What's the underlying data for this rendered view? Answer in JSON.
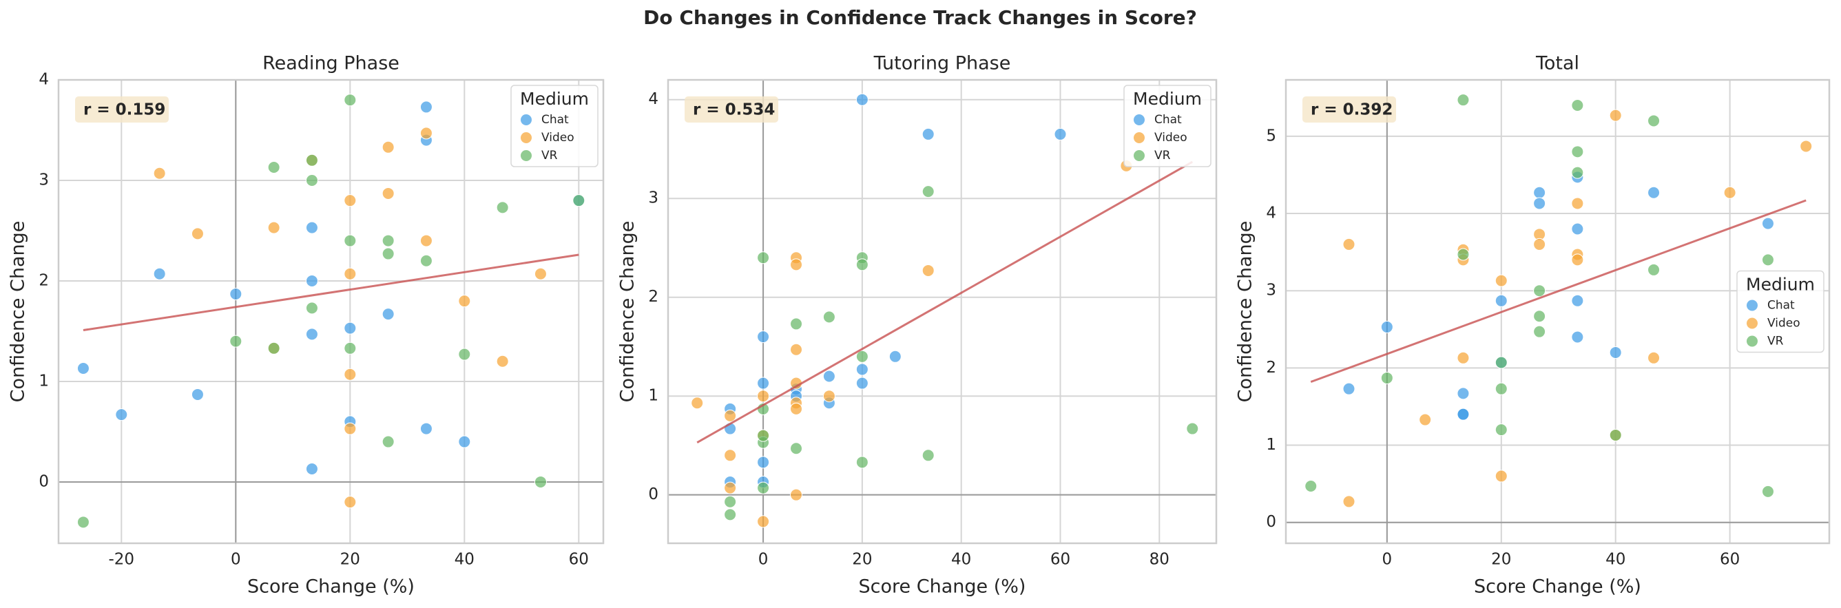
{
  "title": "Do Changes in Confidence Track Changes in Score?",
  "chart_data": [
    {
      "type": "scatter",
      "title": "Reading Phase",
      "xlabel": "Score Change (%)",
      "ylabel": "Confidence Change",
      "annotation": "r = 0.159",
      "legend_title": "Medium",
      "legend": "upper right",
      "grid": true,
      "xlim": [
        -31,
        64.3
      ],
      "ylim": [
        -0.61,
        4
      ],
      "xticks": [
        -20,
        0,
        20,
        40,
        60
      ],
      "yticks": [
        0,
        1,
        2,
        3,
        4
      ],
      "hline": 0,
      "vline": 0,
      "trend": {
        "color": "#c85050",
        "x": [
          -26.67,
          60
        ],
        "y": [
          1.51,
          2.26
        ]
      },
      "series": [
        {
          "name": "Chat",
          "color": "#3a9ae6",
          "x": [
            -26.67,
            -20,
            -13.33,
            -6.67,
            0,
            13.33,
            13.33,
            13.33,
            13.33,
            20,
            20,
            26.67,
            33.33,
            33.33,
            33.33,
            40,
            60
          ],
          "y": [
            1.13,
            0.67,
            2.07,
            0.87,
            1.87,
            2.53,
            2.0,
            1.47,
            0.13,
            1.53,
            0.6,
            1.67,
            3.73,
            3.4,
            0.53,
            0.4,
            2.8
          ]
        },
        {
          "name": "Video",
          "color": "#f7a330",
          "x": [
            -13.33,
            -6.67,
            6.67,
            6.67,
            13.33,
            20,
            20,
            20,
            20,
            20,
            26.67,
            26.67,
            33.33,
            33.33,
            40,
            46.67,
            53.33
          ],
          "y": [
            3.07,
            2.47,
            2.53,
            1.33,
            3.2,
            2.8,
            2.07,
            1.07,
            0.53,
            -0.2,
            3.33,
            2.87,
            3.47,
            2.4,
            1.8,
            1.2,
            2.07
          ]
        },
        {
          "name": "VR",
          "color": "#62b562",
          "x": [
            -26.67,
            0,
            6.67,
            6.67,
            13.33,
            13.33,
            13.33,
            20,
            20,
            20,
            26.67,
            26.67,
            26.67,
            33.33,
            40,
            46.67,
            53.33,
            60
          ],
          "y": [
            -0.4,
            1.4,
            3.13,
            1.33,
            3.2,
            3.0,
            1.73,
            3.8,
            2.4,
            1.33,
            2.4,
            2.27,
            0.4,
            2.2,
            1.27,
            2.73,
            0,
            2.8
          ]
        }
      ]
    },
    {
      "type": "scatter",
      "title": "Tutoring Phase",
      "xlabel": "Score Change (%)",
      "ylabel": "Confidence Change",
      "annotation": "r = 0.534",
      "legend_title": "Medium",
      "legend": "upper right",
      "grid": true,
      "xlim": [
        -19.2,
        91.5
      ],
      "ylim": [
        -0.49,
        4.2
      ],
      "xticks": [
        0,
        20,
        40,
        60,
        80
      ],
      "yticks": [
        0,
        1,
        2,
        3,
        4
      ],
      "hline": 0,
      "vline": 0,
      "trend": {
        "color": "#c85050",
        "x": [
          -13.33,
          86.67
        ],
        "y": [
          0.53,
          3.37
        ]
      },
      "series": [
        {
          "name": "Chat",
          "color": "#3a9ae6",
          "x": [
            20,
            33.33,
            60,
            26.67,
            20,
            20,
            13.33,
            13.33,
            6.67,
            6.67,
            0,
            0,
            0,
            0,
            -6.67,
            -6.67,
            -6.67
          ],
          "y": [
            4.0,
            3.65,
            3.65,
            1.4,
            1.27,
            1.13,
            1.2,
            0.93,
            1.07,
            1.0,
            1.6,
            1.13,
            0.33,
            0.13,
            0.87,
            0.67,
            0.13
          ]
        },
        {
          "name": "Video",
          "color": "#f7a330",
          "x": [
            73.33,
            33.33,
            6.67,
            6.67,
            6.67,
            6.67,
            6.67,
            6.67,
            13.33,
            0,
            0,
            0,
            -6.67,
            -6.67,
            -6.67,
            -13.33,
            6.67
          ],
          "y": [
            3.33,
            2.27,
            2.4,
            2.33,
            1.47,
            1.13,
            0.93,
            0.87,
            1.0,
            1.0,
            0.6,
            -0.27,
            0.8,
            0.4,
            0.07,
            0.93,
            0
          ]
        },
        {
          "name": "VR",
          "color": "#62b562",
          "x": [
            0,
            20,
            20,
            33.33,
            13.33,
            6.67,
            20,
            0,
            0,
            0,
            6.67,
            20,
            33.33,
            86.67,
            -6.67,
            -6.67,
            0
          ],
          "y": [
            2.4,
            2.4,
            2.33,
            3.07,
            1.8,
            1.73,
            1.4,
            0.87,
            0.53,
            0.6,
            0.47,
            0.33,
            0.4,
            0.67,
            -0.07,
            -0.2,
            0.07
          ]
        }
      ]
    },
    {
      "type": "scatter",
      "title": "Total",
      "xlabel": "Score Change (%)",
      "ylabel": "Confidence Change",
      "annotation": "r = 0.392",
      "legend_title": "Medium",
      "legend": "center right",
      "grid": true,
      "xlim": [
        -17.7,
        77.4
      ],
      "ylim": [
        -0.27,
        5.73
      ],
      "xticks": [
        0,
        20,
        40,
        60
      ],
      "yticks": [
        0,
        1,
        2,
        3,
        4,
        5
      ],
      "hline": 0,
      "vline": 0,
      "trend": {
        "color": "#c85050",
        "x": [
          -13.33,
          73.33
        ],
        "y": [
          1.82,
          4.17
        ]
      },
      "series": [
        {
          "name": "Chat",
          "color": "#3a9ae6",
          "x": [
            -6.67,
            0,
            13.33,
            13.33,
            20,
            20,
            26.67,
            26.67,
            33.33,
            33.33,
            33.33,
            33.33,
            40,
            46.67,
            66.67,
            13.33
          ],
          "y": [
            1.73,
            2.53,
            1.67,
            1.4,
            2.87,
            2.07,
            4.27,
            4.13,
            4.47,
            3.8,
            2.87,
            2.4,
            2.2,
            4.27,
            3.87,
            1.4
          ]
        },
        {
          "name": "Video",
          "color": "#f7a330",
          "x": [
            -6.67,
            -6.67,
            6.67,
            13.33,
            13.33,
            13.33,
            20,
            20,
            26.67,
            26.67,
            33.33,
            33.33,
            33.33,
            40,
            46.67,
            60,
            73.33,
            40
          ],
          "y": [
            3.6,
            0.27,
            1.33,
            3.53,
            3.4,
            2.13,
            3.13,
            0.6,
            3.73,
            3.6,
            4.13,
            3.47,
            3.4,
            5.27,
            2.13,
            4.27,
            4.87,
            1.13
          ]
        },
        {
          "name": "VR",
          "color": "#62b562",
          "x": [
            -13.33,
            0,
            13.33,
            13.33,
            20,
            20,
            20,
            26.67,
            26.67,
            26.67,
            33.33,
            33.33,
            33.33,
            46.67,
            46.67,
            40,
            66.67,
            66.67
          ],
          "y": [
            0.47,
            1.87,
            5.47,
            3.47,
            2.07,
            1.73,
            1.2,
            3.0,
            2.67,
            2.47,
            5.4,
            4.8,
            4.53,
            5.2,
            3.27,
            1.13,
            3.4,
            0.4
          ]
        }
      ]
    }
  ]
}
